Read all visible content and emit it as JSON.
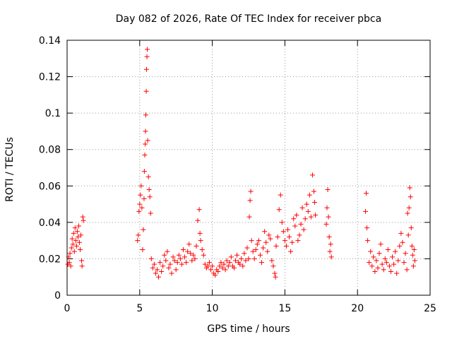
{
  "chart_data": {
    "type": "scatter",
    "title": "Day 082 of 2026, Rate Of TEC Index for receiver pbca",
    "xlabel": "GPS time / hours",
    "ylabel": "ROTI / TECUs",
    "xlim": [
      0,
      25
    ],
    "ylim": [
      0,
      0.14
    ],
    "xticks": [
      "0",
      "5",
      "10",
      "15",
      "20",
      "25"
    ],
    "yticks": [
      "0",
      "0.02",
      "0.04",
      "0.06",
      "0.08",
      "0.1",
      "0.12",
      "0.14"
    ],
    "grid": true,
    "marker": "+",
    "color": "#ff0000",
    "series": [
      {
        "points": [
          [
            0.05,
            0.017
          ],
          [
            0.1,
            0.021
          ],
          [
            0.15,
            0.018
          ],
          [
            0.2,
            0.023
          ],
          [
            0.25,
            0.016
          ],
          [
            0.3,
            0.026
          ],
          [
            0.35,
            0.031
          ],
          [
            0.4,
            0.028
          ],
          [
            0.45,
            0.034
          ],
          [
            0.5,
            0.024
          ],
          [
            0.55,
            0.037
          ],
          [
            0.6,
            0.03
          ],
          [
            0.65,
            0.027
          ],
          [
            0.7,
            0.035
          ],
          [
            0.75,
            0.032
          ],
          [
            0.8,
            0.038
          ],
          [
            0.85,
            0.029
          ],
          [
            0.9,
            0.025
          ],
          [
            0.95,
            0.033
          ],
          [
            1.0,
            0.019
          ],
          [
            1.03,
            0.016
          ],
          [
            1.08,
            0.043
          ],
          [
            1.12,
            0.041
          ],
          [
            4.85,
            0.03
          ],
          [
            4.9,
            0.033
          ],
          [
            4.95,
            0.046
          ],
          [
            5.0,
            0.05
          ],
          [
            5.05,
            0.055
          ],
          [
            5.1,
            0.06
          ],
          [
            5.15,
            0.048
          ],
          [
            5.2,
            0.025
          ],
          [
            5.25,
            0.036
          ],
          [
            5.3,
            0.053
          ],
          [
            5.32,
            0.068
          ],
          [
            5.35,
            0.077
          ],
          [
            5.38,
            0.083
          ],
          [
            5.4,
            0.09
          ],
          [
            5.42,
            0.099
          ],
          [
            5.45,
            0.112
          ],
          [
            5.47,
            0.124
          ],
          [
            5.5,
            0.131
          ],
          [
            5.52,
            0.135
          ],
          [
            5.55,
            0.085
          ],
          [
            5.6,
            0.065
          ],
          [
            5.65,
            0.058
          ],
          [
            5.7,
            0.054
          ],
          [
            5.75,
            0.045
          ],
          [
            5.8,
            0.02
          ],
          [
            5.9,
            0.015
          ],
          [
            6.0,
            0.017
          ],
          [
            6.1,
            0.012
          ],
          [
            6.2,
            0.014
          ],
          [
            6.3,
            0.01
          ],
          [
            6.4,
            0.018
          ],
          [
            6.5,
            0.013
          ],
          [
            6.6,
            0.016
          ],
          [
            6.7,
            0.022
          ],
          [
            6.8,
            0.019
          ],
          [
            6.9,
            0.024
          ],
          [
            7.0,
            0.015
          ],
          [
            7.1,
            0.017
          ],
          [
            7.2,
            0.012
          ],
          [
            7.3,
            0.021
          ],
          [
            7.4,
            0.019
          ],
          [
            7.5,
            0.014
          ],
          [
            7.6,
            0.018
          ],
          [
            7.7,
            0.022
          ],
          [
            7.8,
            0.02
          ],
          [
            7.9,
            0.017
          ],
          [
            8.0,
            0.025
          ],
          [
            8.1,
            0.021
          ],
          [
            8.2,
            0.018
          ],
          [
            8.3,
            0.024
          ],
          [
            8.4,
            0.028
          ],
          [
            8.5,
            0.023
          ],
          [
            8.6,
            0.019
          ],
          [
            8.7,
            0.022
          ],
          [
            8.8,
            0.02
          ],
          [
            8.9,
            0.027
          ],
          [
            9.0,
            0.041
          ],
          [
            9.1,
            0.047
          ],
          [
            9.15,
            0.034
          ],
          [
            9.2,
            0.03
          ],
          [
            9.3,
            0.025
          ],
          [
            9.4,
            0.022
          ],
          [
            9.5,
            0.017
          ],
          [
            9.6,
            0.015
          ],
          [
            9.7,
            0.016
          ],
          [
            9.8,
            0.018
          ],
          [
            9.9,
            0.014
          ],
          [
            10.0,
            0.016
          ],
          [
            10.1,
            0.012
          ],
          [
            10.2,
            0.011
          ],
          [
            10.3,
            0.014
          ],
          [
            10.4,
            0.013
          ],
          [
            10.5,
            0.016
          ],
          [
            10.6,
            0.018
          ],
          [
            10.7,
            0.015
          ],
          [
            10.8,
            0.017
          ],
          [
            10.9,
            0.014
          ],
          [
            11.0,
            0.019
          ],
          [
            11.1,
            0.016
          ],
          [
            11.2,
            0.018
          ],
          [
            11.3,
            0.021
          ],
          [
            11.4,
            0.016
          ],
          [
            11.5,
            0.015
          ],
          [
            11.6,
            0.019
          ],
          [
            11.7,
            0.022
          ],
          [
            11.8,
            0.018
          ],
          [
            11.9,
            0.017
          ],
          [
            12.0,
            0.02
          ],
          [
            12.1,
            0.016
          ],
          [
            12.2,
            0.023
          ],
          [
            12.3,
            0.019
          ],
          [
            12.4,
            0.026
          ],
          [
            12.5,
            0.02
          ],
          [
            12.55,
            0.043
          ],
          [
            12.6,
            0.052
          ],
          [
            12.65,
            0.057
          ],
          [
            12.7,
            0.03
          ],
          [
            12.8,
            0.024
          ],
          [
            12.9,
            0.02
          ],
          [
            13.0,
            0.025
          ],
          [
            13.1,
            0.028
          ],
          [
            13.2,
            0.03
          ],
          [
            13.3,
            0.022
          ],
          [
            13.4,
            0.018
          ],
          [
            13.5,
            0.026
          ],
          [
            13.6,
            0.035
          ],
          [
            13.7,
            0.029
          ],
          [
            13.8,
            0.024
          ],
          [
            13.9,
            0.033
          ],
          [
            14.0,
            0.031
          ],
          [
            14.1,
            0.019
          ],
          [
            14.2,
            0.016
          ],
          [
            14.3,
            0.012
          ],
          [
            14.35,
            0.01
          ],
          [
            14.4,
            0.027
          ],
          [
            14.5,
            0.032
          ],
          [
            14.6,
            0.047
          ],
          [
            14.7,
            0.055
          ],
          [
            14.8,
            0.04
          ],
          [
            14.9,
            0.035
          ],
          [
            15.0,
            0.03
          ],
          [
            15.1,
            0.027
          ],
          [
            15.2,
            0.036
          ],
          [
            15.3,
            0.032
          ],
          [
            15.4,
            0.024
          ],
          [
            15.5,
            0.029
          ],
          [
            15.6,
            0.042
          ],
          [
            15.7,
            0.038
          ],
          [
            15.8,
            0.044
          ],
          [
            15.9,
            0.03
          ],
          [
            16.0,
            0.033
          ],
          [
            16.1,
            0.039
          ],
          [
            16.2,
            0.048
          ],
          [
            16.3,
            0.036
          ],
          [
            16.4,
            0.042
          ],
          [
            16.5,
            0.05
          ],
          [
            16.6,
            0.046
          ],
          [
            16.7,
            0.055
          ],
          [
            16.8,
            0.043
          ],
          [
            16.9,
            0.066
          ],
          [
            17.0,
            0.057
          ],
          [
            17.05,
            0.051
          ],
          [
            17.1,
            0.044
          ],
          [
            17.85,
            0.039
          ],
          [
            17.9,
            0.048
          ],
          [
            17.95,
            0.058
          ],
          [
            18.0,
            0.043
          ],
          [
            18.05,
            0.032
          ],
          [
            18.1,
            0.024
          ],
          [
            18.15,
            0.028
          ],
          [
            18.2,
            0.021
          ],
          [
            20.55,
            0.046
          ],
          [
            20.6,
            0.056
          ],
          [
            20.65,
            0.037
          ],
          [
            20.7,
            0.03
          ],
          [
            20.8,
            0.018
          ],
          [
            20.9,
            0.024
          ],
          [
            21.0,
            0.016
          ],
          [
            21.1,
            0.021
          ],
          [
            21.2,
            0.013
          ],
          [
            21.3,
            0.019
          ],
          [
            21.4,
            0.015
          ],
          [
            21.5,
            0.023
          ],
          [
            21.6,
            0.028
          ],
          [
            21.7,
            0.017
          ],
          [
            21.8,
            0.014
          ],
          [
            21.9,
            0.02
          ],
          [
            22.0,
            0.018
          ],
          [
            22.1,
            0.025
          ],
          [
            22.2,
            0.016
          ],
          [
            22.3,
            0.013
          ],
          [
            22.4,
            0.021
          ],
          [
            22.5,
            0.017
          ],
          [
            22.6,
            0.024
          ],
          [
            22.7,
            0.012
          ],
          [
            22.8,
            0.019
          ],
          [
            22.9,
            0.027
          ],
          [
            23.0,
            0.034
          ],
          [
            23.1,
            0.029
          ],
          [
            23.2,
            0.018
          ],
          [
            23.3,
            0.023
          ],
          [
            23.4,
            0.014
          ],
          [
            23.45,
            0.045
          ],
          [
            23.5,
            0.033
          ],
          [
            23.55,
            0.048
          ],
          [
            23.6,
            0.059
          ],
          [
            23.65,
            0.054
          ],
          [
            23.7,
            0.037
          ],
          [
            23.75,
            0.027
          ],
          [
            23.8,
            0.022
          ],
          [
            23.85,
            0.016
          ],
          [
            23.9,
            0.025
          ],
          [
            23.95,
            0.019
          ]
        ]
      }
    ]
  }
}
